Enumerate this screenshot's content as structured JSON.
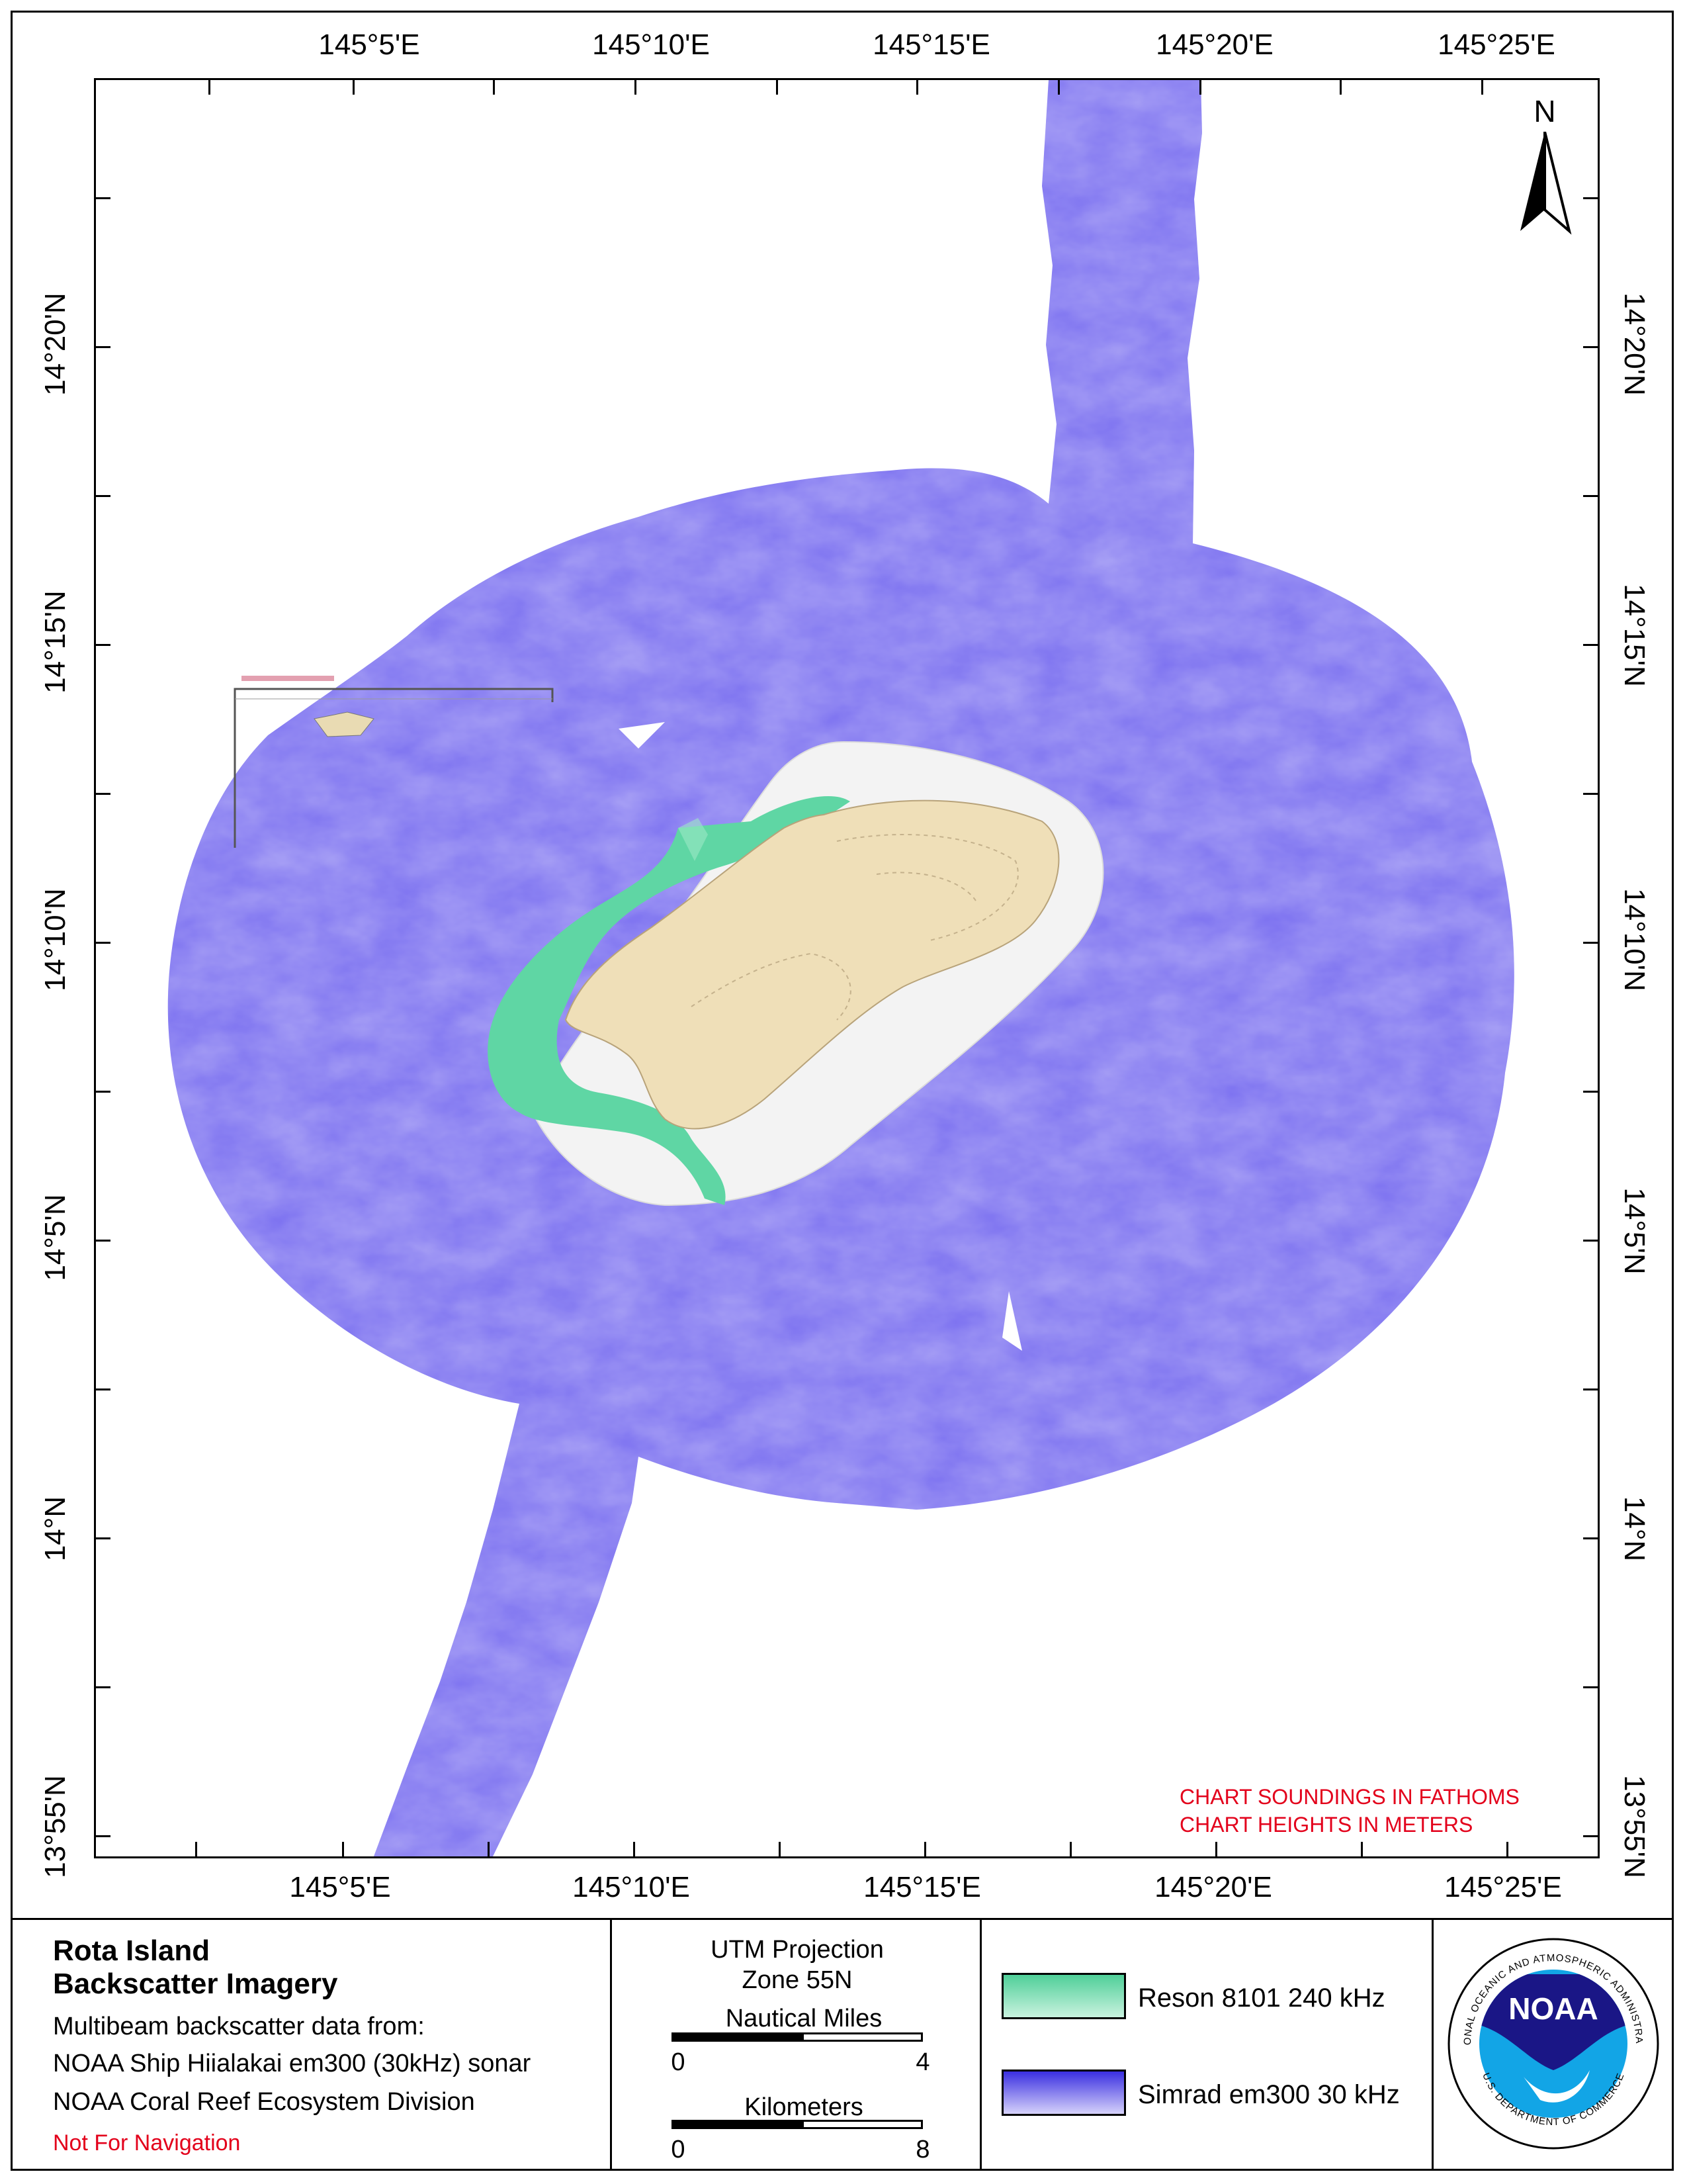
{
  "map": {
    "top_longitude_labels": [
      "145°5'E",
      "145°10'E",
      "145°15'E",
      "145°20'E",
      "145°25'E"
    ],
    "bottom_longitude_labels": [
      "145°5'E",
      "145°10'E",
      "145°15'E",
      "145°20'E",
      "145°25'E"
    ],
    "left_latitude_labels": [
      "14°20'N",
      "14°15'N",
      "14°10'N",
      "14°5'N",
      "14°N",
      "13°55'N"
    ],
    "right_latitude_labels": [
      "14°20'N",
      "14°15'N",
      "14°10'N",
      "14°5'N",
      "14°N",
      "13°55'N"
    ],
    "north_arrow_label": "N",
    "chart_notes": [
      "CHART SOUNDINGS IN FATHOMS",
      "CHART HEIGHTS IN METERS"
    ],
    "colors": {
      "em300_backscatter": "#7b70f0",
      "reson_backscatter": "#5fd6a4",
      "land": "#efdfb8",
      "shelf": "#f4f4f4",
      "note_text": "#e3001b"
    }
  },
  "legend": {
    "title_line1": "Rota Island",
    "title_line2": "Backscatter Imagery",
    "credit_line1": "Multibeam backscatter data from:",
    "credit_line2": "NOAA Ship Hiialakai em300 (30kHz) sonar",
    "credit_line3": "NOAA Coral Reef Ecosystem Division",
    "disclaimer": "Not For Navigation",
    "projection_line1": "UTM Projection",
    "projection_line2": "Zone 55N",
    "nautical_miles_label": "Nautical Miles",
    "nm_start": "0",
    "nm_end": "4",
    "kilometers_label": "Kilometers",
    "km_start": "0",
    "km_end": "8",
    "reson_label": "Reson 8101 240 kHz",
    "simrad_label": "Simrad em300 30 kHz",
    "logo_text": "NOAA",
    "logo_ring_top": "NATIONAL OCEANIC AND ATMOSPHERIC ADMINISTRATION",
    "logo_ring_bottom": "U.S. DEPARTMENT OF COMMERCE"
  }
}
